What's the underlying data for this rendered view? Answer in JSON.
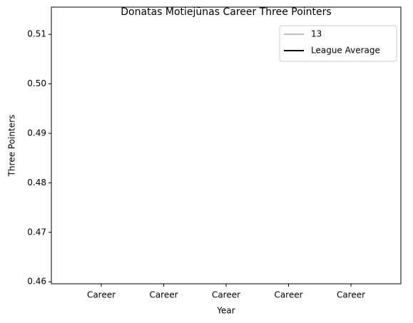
{
  "chart_data": {
    "type": "line",
    "title": "Donatas Motiejūnas Career Three Pointers",
    "xlabel": "Year",
    "ylabel": "Three Pointers",
    "categories": [
      "Career",
      "Career",
      "Career",
      "Career",
      "Career"
    ],
    "series": [
      {
        "name": "13",
        "color": "#bfbfbf",
        "values": [
          null,
          null,
          null,
          null,
          null
        ]
      },
      {
        "name": "League Average",
        "color": "#000000",
        "values": [
          null,
          null,
          null,
          null,
          null
        ]
      }
    ],
    "ylim": [
      0.4596,
      0.5155
    ],
    "yticks": [
      0.46,
      0.47,
      0.48,
      0.49,
      {
        "value": 0.5,
        "label": "0.50"
      },
      0.51
    ],
    "legend": "upper right"
  }
}
